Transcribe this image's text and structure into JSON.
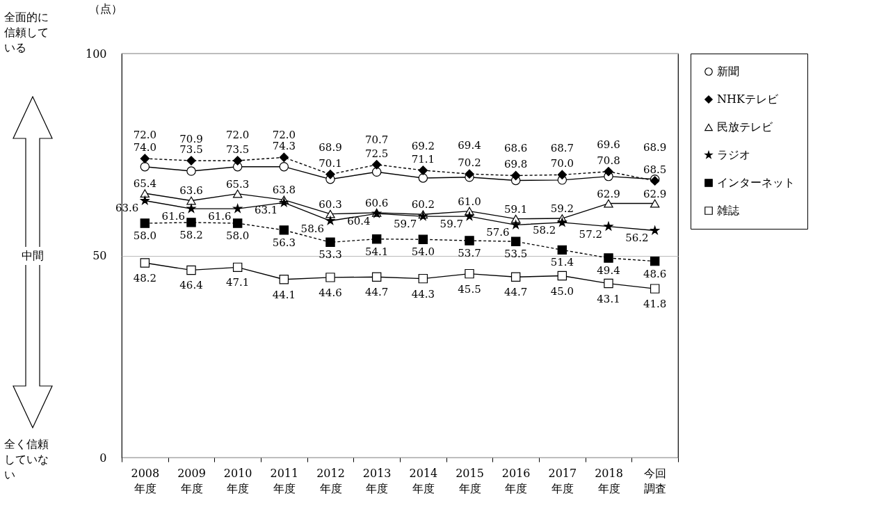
{
  "chart_data": {
    "type": "line",
    "categories": [
      "2008\n年度",
      "2009\n年度",
      "2010\n年度",
      "2011\n年度",
      "2012\n年度",
      "2013\n年度",
      "2014\n年度",
      "2015\n年度",
      "2016\n年度",
      "2017\n年度",
      "2018\n年度",
      "今回調査"
    ],
    "series": [
      {
        "name": "新聞",
        "color": "#000000",
        "marker": "circle",
        "line_style": "solid",
        "values": [
          72.0,
          70.9,
          72.0,
          72.0,
          68.9,
          70.7,
          69.2,
          69.4,
          68.6,
          68.7,
          69.6,
          68.9
        ],
        "value_labels": [
          "72.0",
          "70.9",
          "72.0",
          "72.0",
          "68.9",
          "70.7",
          "69.2",
          "69.4",
          "68.6",
          "68.7",
          "69.6",
          "68.9"
        ]
      },
      {
        "name": "NHKテレビ",
        "color": "#000000",
        "marker": "diamond",
        "line_style": "dashed",
        "values": [
          74.0,
          73.5,
          73.5,
          74.3,
          70.1,
          72.5,
          71.1,
          70.2,
          69.8,
          70.0,
          70.8,
          68.5
        ],
        "value_labels": [
          "74.0",
          "73.5",
          "73.5",
          "74.3",
          "70.1",
          "72.5",
          "71.1",
          "70.2",
          "69.8",
          "70.0",
          "70.8",
          "68.5"
        ]
      },
      {
        "name": "民放テレビ",
        "color": "#000000",
        "marker": "triangle",
        "line_style": "solid",
        "values": [
          65.4,
          63.6,
          65.3,
          63.8,
          60.3,
          60.6,
          60.2,
          61.0,
          59.1,
          59.2,
          62.9,
          62.9
        ],
        "value_labels": [
          "65.4",
          "63.6",
          "65.3",
          "63.8",
          "60.3",
          "60.6",
          "60.2",
          "61.0",
          "59.1",
          "59.2",
          "62.9",
          "62.9"
        ]
      },
      {
        "name": "ラジオ",
        "color": "#000000",
        "marker": "star",
        "line_style": "solid",
        "values": [
          63.6,
          61.6,
          61.6,
          63.1,
          58.6,
          60.4,
          59.7,
          59.7,
          57.6,
          58.2,
          57.2,
          56.2
        ],
        "value_labels": [
          "63.6",
          "61.6",
          "61.6",
          "63.1",
          "58.6",
          "60.4",
          "59.7",
          "59.7",
          "57.6",
          "58.2",
          "57.2",
          "56.2"
        ]
      },
      {
        "name": "インターネット",
        "color": "#000000",
        "marker": "square",
        "line_style": "dashed",
        "values": [
          58.0,
          58.2,
          58.0,
          56.3,
          53.3,
          54.1,
          54.0,
          53.7,
          53.5,
          51.4,
          49.4,
          48.6
        ],
        "value_labels": [
          "58.0",
          "58.2",
          "58.0",
          "56.3",
          "53.3",
          "54.1",
          "54.0",
          "53.7",
          "53.5",
          "51.4",
          "49.4",
          "48.6"
        ]
      },
      {
        "name": "雑誌",
        "color": "#000000",
        "marker": "square",
        "line_style": "solid",
        "values": [
          48.2,
          46.4,
          47.1,
          44.1,
          44.6,
          44.7,
          44.3,
          45.5,
          44.7,
          45.0,
          43.1,
          41.8
        ],
        "value_labels": [
          "48.2",
          "46.4",
          "47.1",
          "44.1",
          "44.6",
          "44.7",
          "44.3",
          "45.5",
          "44.7",
          "45.0",
          "43.1",
          "41.8"
        ]
      }
    ],
    "ylim": [
      0,
      100
    ],
    "yticks": [
      0,
      50,
      100
    ],
    "grid": "y",
    "legend": "right",
    "annotations": [
      "（点）",
      "全面的に信頼している",
      "中間",
      "全く信頼していない"
    ]
  }
}
